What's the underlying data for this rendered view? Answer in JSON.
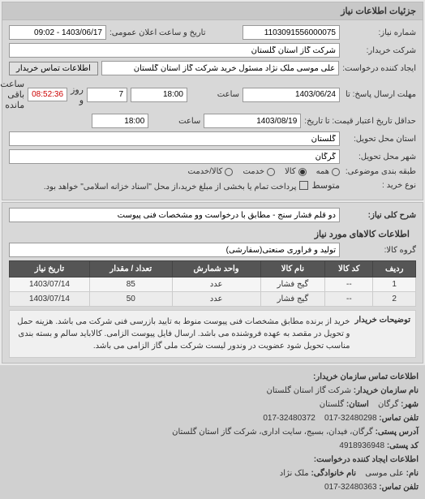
{
  "header": {
    "title": "جزئیات اطلاعات نیاز"
  },
  "form": {
    "request_no_label": "شماره نیاز:",
    "request_no": "1103091556000075",
    "buyer_name_label": "شرکت خریدار:",
    "buyer_name": "شرکت گاز استان گلستان",
    "creator_label": "ایجاد کننده درخواست:",
    "creator": "علی موسی ملک نژاد مسئول خرید شرکت گاز استان گلستان",
    "contact_btn": "اطلاعات تماس خریدار",
    "deadline_label": "مهلت ارسال پاسخ: تا",
    "deadline_date": "1403/06/24",
    "time_label": "ساعت",
    "deadline_time": "18:00",
    "days_label": "روز و",
    "days_remaining": "7",
    "remaining_label": "ساعت باقی مانده",
    "remaining_time": "08:52:36",
    "validity_label": "حداقل تاریخ اعتبار قیمت: تا تاریخ:",
    "validity_date": "1403/08/19",
    "validity_time": "18:00",
    "delivery_province_label": "استان محل تحویل:",
    "delivery_province": "گلستان",
    "delivery_city_label": "شهر محل تحویل:",
    "delivery_city": "گرگان",
    "class_label": "طبقه بندی موضوعی:",
    "class_all": "همه",
    "class_goods": "کالا",
    "class_service": "خدمت",
    "class_goods_service": "کالا/خدمت",
    "type_label": "نوع خرید :",
    "type_mid": "متوسط",
    "type_note": "پرداخت تمام یا بخشی از مبلغ خرید،از محل \"اسناد خزانه اسلامی\" خواهد بود.",
    "public_announce_label": "تاریخ و ساعت اعلان عمومی:",
    "public_announce": "1403/06/17 - 09:02"
  },
  "need": {
    "title_label": "شرح کلی نیاز:",
    "title": "دو قلم فشار سنج - مطابق با درخواست وو مشخصات فنی پیوست",
    "goods_section": "اطلاعات کالاهای مورد نیاز",
    "group_label": "گروه کالا:",
    "group": "تولید و فرآوری صنعتی(سفارشی)"
  },
  "table": {
    "headers": [
      "ردیف",
      "کد کالا",
      "نام کالا",
      "واحد شمارش",
      "تعداد / مقدار",
      "تاریخ نیاز"
    ],
    "rows": [
      [
        "1",
        "--",
        "گیج فشار",
        "عدد",
        "85",
        "1403/07/14"
      ],
      [
        "2",
        "--",
        "گیج فشار",
        "عدد",
        "50",
        "1403/07/14"
      ]
    ]
  },
  "description": {
    "label": "توضیحات خریدار",
    "text": "خرید از برنده مطابق مشخصات فنی پیوست منوط به تایید بازرسی فنی شرکت می باشد. هزینه حمل و تحویل در مقصد به عهده فروشنده می باشد. ارسال فایل پیوست الزامی. کالاباید سالم و بسته بندی مناسب تحویل شود عضویت در وندور لیست شرکت ملی گاز الزامی می باشد."
  },
  "contact": {
    "section_title": "اطلاعات تماس سازمان خریدار:",
    "org_label": "نام سازمان خریدار:",
    "org": "شرکت گاز استان گلستان",
    "city_label": "شهر:",
    "city": "گرگان",
    "province_label": "استان:",
    "province": "گلستان",
    "phone_label": "تلفن تماس:",
    "phone": "32480298-017",
    "address_label": "آدرس پستی:",
    "address": "گرگان، فیدان، بسیج، سایت اداری، شرکت گاز استان گلستان",
    "fax_label": "کد پستی:",
    "ref": "32480372-017",
    "post_label": "کد پستی:",
    "post": "4918936948",
    "creator_section": "اطلاعات ایجاد کننده درخواست:",
    "fname_label": "نام:",
    "fname": "علی موسی",
    "lname_label": "نام خانوادگی:",
    "lname": "ملک نژاد",
    "cphone_label": "تلفن تماس:",
    "cphone": "32480363-017"
  }
}
